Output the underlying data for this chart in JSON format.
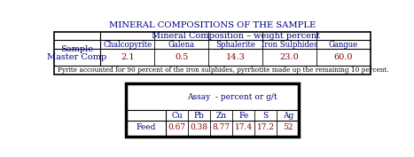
{
  "title": "MINERAL COMPOSITIONS OF THE SAMPLE",
  "title_color": "#000080",
  "table1_header1": "Sample",
  "table1_header2": "Mineral Composition – weight percent",
  "table1_subheaders": [
    "Chalcopyrite",
    "Galena",
    "Sphalerite",
    "Iron Sulphides",
    "Gangue"
  ],
  "table1_row_label": "Master Comp",
  "table1_values": [
    "2.1",
    "0.5",
    "14.3",
    "23.0",
    "60.0"
  ],
  "table1_footnote": "Pyrite accounted for 90 percent of the iron sulphides, pyrrhotite made up the remaining 10 percent.",
  "table2_header": "Assay  - percent or g/t",
  "table2_subheaders": [
    "Cu",
    "Pb",
    "Zn",
    "Fe",
    "S",
    "Ag"
  ],
  "table2_row_label": "Feed",
  "table2_values": [
    "0.67",
    "0.38",
    "8.77",
    "17.4",
    "17.2",
    "52"
  ],
  "bg_color": "white",
  "text_color_navy": "#000080",
  "text_color_dark_red": "#8B0000",
  "text_color_black": "#000000"
}
